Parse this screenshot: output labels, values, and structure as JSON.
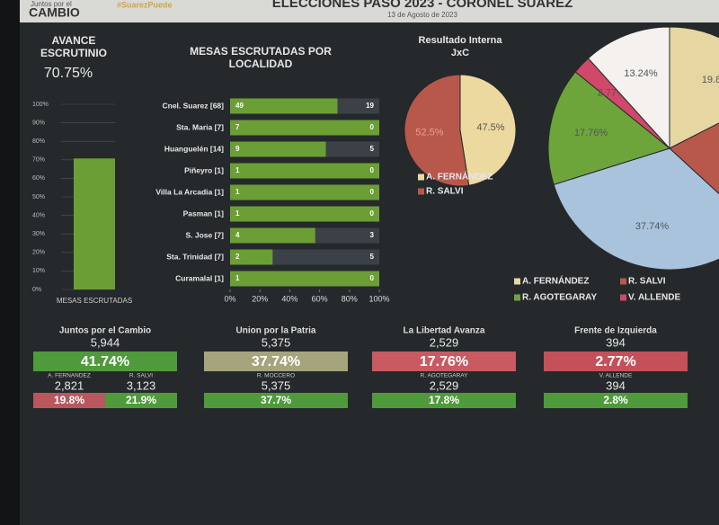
{
  "header": {
    "logo_top": "Juntos por el",
    "logo": "CAMBIO",
    "hashtag": "#SuarezPuede",
    "title": "ELECCIONES PASO 2023 - CORONEL SUAREZ",
    "date": "13 de Agosto de 2023"
  },
  "chart_data": [
    {
      "type": "bar",
      "title": "AVANCE ESCRUTINIO",
      "categories": [
        "MESAS ESCRUTADAS"
      ],
      "values": [
        70.75
      ],
      "value_labels": [
        "70.75%"
      ],
      "color": "#6b9e34",
      "ylim": [
        0,
        100
      ],
      "yticks": [
        {
          "value": 0,
          "label": "0%"
        },
        {
          "value": 10,
          "label": "10%"
        },
        {
          "value": 20,
          "label": "20%"
        },
        {
          "value": 30,
          "label": "30%"
        },
        {
          "value": 40,
          "label": "40%"
        },
        {
          "value": 50,
          "label": "50%"
        },
        {
          "value": 60,
          "label": "60%"
        },
        {
          "value": 70,
          "label": "70%"
        },
        {
          "value": 80,
          "label": "80%"
        },
        {
          "value": 90,
          "label": "90%"
        },
        {
          "value": 100,
          "label": "100%"
        }
      ],
      "grid": true
    },
    {
      "type": "stacked_barh",
      "title": "MESAS ESCRUTADAS POR LOCALIDAD",
      "stacking": "percent",
      "categories": [
        "Cnel. Suarez [68]",
        "Sta. Maria [7]",
        "Huanguelén [14]",
        "Piñeyro [1]",
        "Villa La Arcadia [1]",
        "Pasman [1]",
        "S. Jose [7]",
        "Sta. Trinidad [7]",
        "Curamalal [1]"
      ],
      "series": [
        {
          "color": "#6b9e34",
          "values": [
            49,
            7,
            9,
            1,
            1,
            1,
            4,
            2,
            1
          ]
        },
        {
          "color": "#3b4147",
          "values": [
            19,
            0,
            5,
            0,
            0,
            0,
            3,
            5,
            0
          ]
        }
      ],
      "xlim": [
        0,
        100
      ],
      "xticks": [
        {
          "value": 0,
          "label": "0%"
        },
        {
          "value": 20,
          "label": "20%"
        },
        {
          "value": 40,
          "label": "40%"
        },
        {
          "value": 60,
          "label": "60%"
        },
        {
          "value": 80,
          "label": "80%"
        },
        {
          "value": 100,
          "label": "100%"
        }
      ]
    },
    {
      "type": "pie",
      "title": "Resultado Interna JxC",
      "categories": [
        "A. FERNÁNDEZ",
        "R. SALVI"
      ],
      "values": [
        47.5,
        52.5
      ],
      "value_labels": [
        "47.5%",
        "52.5%"
      ],
      "colors": [
        "#ecd9a0",
        "#b8584a"
      ]
    },
    {
      "type": "pie",
      "categories": [
        "A. FERNÁNDEZ",
        "R. SALVI",
        null,
        "R. AGOTEGARAY",
        "V. ALLENDE",
        null
      ],
      "values": [
        19.8,
        21.9,
        37.74,
        17.76,
        2.77,
        13.24
      ],
      "value_labels": [
        "19.8",
        null,
        "37.74%",
        "17.76%",
        "2.77%",
        "13.24%"
      ],
      "colors": [
        "#e6d6a2",
        "#b8584a",
        "#a9c3dd",
        "#6da53a",
        "#d0486a",
        "#f4f1ee"
      ]
    }
  ],
  "results": [
    {
      "party": "Juntos por el Cambio",
      "votes": "5,944",
      "percent": "41.74%",
      "color": "#4f9a3a",
      "candidates": [
        {
          "name": "A. FERNANDEZ",
          "votes": "2,821",
          "percent": "19.8%",
          "color": "#b9575d"
        },
        {
          "name": "R. SALVI",
          "votes": "3,123",
          "percent": "21.9%",
          "color": "#4f9a3a"
        }
      ]
    },
    {
      "party": "Union por la Patria",
      "votes": "5,375",
      "percent": "37.74%",
      "color": "#a5a47c",
      "candidates": [
        {
          "name": "R. MOCCERO",
          "votes": "5,375",
          "percent": "37.7%",
          "color": "#4f9a3a"
        }
      ]
    },
    {
      "party": "La Libertad Avanza",
      "votes": "2,529",
      "percent": "17.76%",
      "color": "#c95a62",
      "candidates": [
        {
          "name": "R. AGOTEGARAY",
          "votes": "2,529",
          "percent": "17.8%",
          "color": "#4f9a3a"
        }
      ]
    },
    {
      "party": "Frente de Izquierda",
      "votes": "394",
      "percent": "2.77%",
      "color": "#c4505a",
      "candidates": [
        {
          "name": "V. ALLENDE",
          "votes": "394",
          "percent": "2.8%",
          "color": "#4f9a3a"
        }
      ]
    }
  ]
}
